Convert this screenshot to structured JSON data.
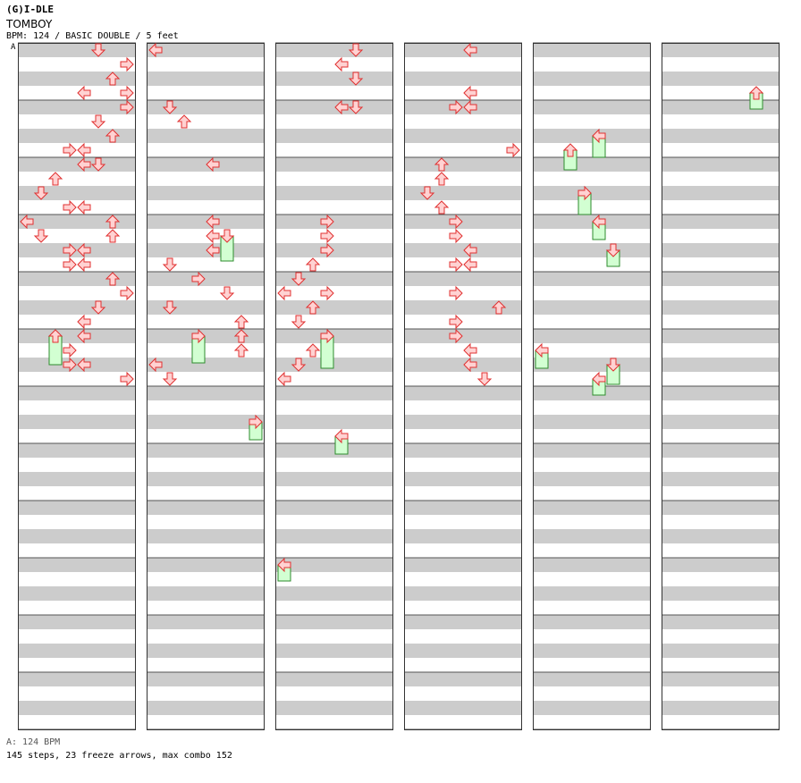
{
  "header": {
    "artist": "(G)I-DLE",
    "title": "TOMBOY",
    "info": "BPM: 124 / BASIC DOUBLE / 5 feet"
  },
  "bpm_marker": "A",
  "footer": {
    "bpm_line": "A: 124 BPM",
    "stats": "145 steps, 23 freeze arrows, max combo 152"
  },
  "colors": {
    "stripe_dark": "#cccccc",
    "stripe_light": "#ffffff",
    "arrow_fill": "#ffd2d2",
    "arrow_stroke": "#e03030",
    "freeze_fill": "#d2ffd2",
    "freeze_stroke": "#2e8b2e",
    "bpm_line": "#3a7bd5"
  },
  "chart_data": {
    "type": "step-chart",
    "lanes": [
      "L-left",
      "L-down",
      "L-up",
      "L-right",
      "R-left",
      "R-down",
      "R-up",
      "R-right"
    ],
    "measures_per_column": 12,
    "columns": 6,
    "arrow_icon": "arrow-icon",
    "freeze_icon": "freeze-arrow-icon",
    "arrows": [
      [
        0,
        0,
        5
      ],
      [
        0,
        1,
        7
      ],
      [
        0,
        2,
        6
      ],
      [
        0,
        3,
        4
      ],
      [
        0,
        3,
        7
      ],
      [
        0,
        4,
        7
      ],
      [
        0,
        5,
        5
      ],
      [
        0,
        6,
        6
      ],
      [
        0,
        7,
        4
      ],
      [
        0,
        7,
        3
      ],
      [
        0,
        8,
        5
      ],
      [
        0,
        8,
        4
      ],
      [
        0,
        9,
        2
      ],
      [
        0,
        10,
        1
      ],
      [
        0,
        11,
        4
      ],
      [
        0,
        11,
        3
      ],
      [
        0,
        12,
        0
      ],
      [
        0,
        12,
        6
      ],
      [
        0,
        13,
        1
      ],
      [
        0,
        13,
        6
      ],
      [
        0,
        14,
        4
      ],
      [
        0,
        14,
        3
      ],
      [
        0,
        15,
        4
      ],
      [
        0,
        15,
        3
      ],
      [
        0,
        16,
        6
      ],
      [
        0,
        17,
        7
      ],
      [
        0,
        18,
        5
      ],
      [
        0,
        19,
        4
      ],
      [
        0,
        20,
        4
      ],
      [
        0,
        21,
        3
      ],
      [
        0,
        22,
        3
      ],
      [
        0,
        22,
        4
      ],
      [
        0,
        23,
        7
      ],
      [
        1,
        0,
        0
      ],
      [
        1,
        4,
        1
      ],
      [
        1,
        5,
        2
      ],
      [
        1,
        8,
        4
      ],
      [
        1,
        12,
        4
      ],
      [
        1,
        13,
        4
      ],
      [
        1,
        14,
        4
      ],
      [
        1,
        15,
        1
      ],
      [
        1,
        16,
        3
      ],
      [
        1,
        17,
        5
      ],
      [
        1,
        18,
        1
      ],
      [
        1,
        19,
        6
      ],
      [
        1,
        20,
        6
      ],
      [
        1,
        21,
        6
      ],
      [
        1,
        22,
        0
      ],
      [
        1,
        23,
        1
      ],
      [
        2,
        0,
        5
      ],
      [
        2,
        1,
        4
      ],
      [
        2,
        2,
        5
      ],
      [
        2,
        4,
        5
      ],
      [
        2,
        4,
        4
      ],
      [
        2,
        12,
        3
      ],
      [
        2,
        13,
        3
      ],
      [
        2,
        14,
        3
      ],
      [
        2,
        15,
        2
      ],
      [
        2,
        16,
        1
      ],
      [
        2,
        17,
        0
      ],
      [
        2,
        17,
        3
      ],
      [
        2,
        18,
        2
      ],
      [
        2,
        19,
        1
      ],
      [
        2,
        20,
        3
      ],
      [
        2,
        21,
        2
      ],
      [
        2,
        22,
        1
      ],
      [
        2,
        23,
        0
      ],
      [
        3,
        0,
        4
      ],
      [
        3,
        3,
        4
      ],
      [
        3,
        4,
        4
      ],
      [
        3,
        4,
        3
      ],
      [
        3,
        7,
        7
      ],
      [
        3,
        8,
        2
      ],
      [
        3,
        9,
        2
      ],
      [
        3,
        10,
        1
      ],
      [
        3,
        11,
        2
      ],
      [
        3,
        12,
        3
      ],
      [
        3,
        13,
        3
      ],
      [
        3,
        14,
        4
      ],
      [
        3,
        15,
        3
      ],
      [
        3,
        15,
        4
      ],
      [
        3,
        17,
        3
      ],
      [
        3,
        18,
        6
      ],
      [
        3,
        19,
        3
      ],
      [
        3,
        20,
        3
      ],
      [
        3,
        21,
        4
      ],
      [
        3,
        22,
        4
      ],
      [
        3,
        23,
        5
      ]
    ]
  }
}
